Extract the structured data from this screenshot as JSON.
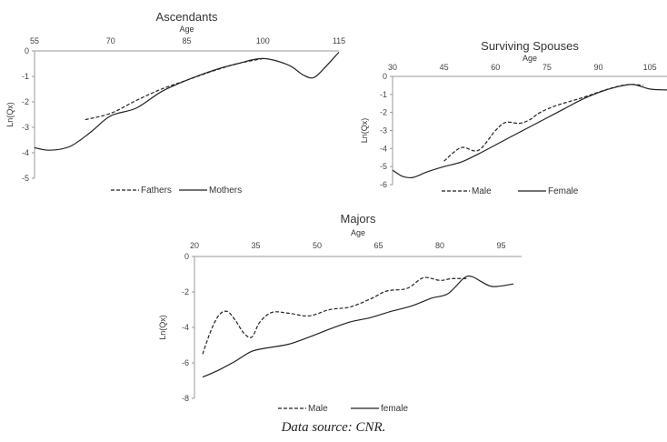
{
  "caption": "Data source: CNR.",
  "chart_data": [
    {
      "type": "line",
      "title": "Ascendants",
      "xlabel": "Age",
      "ylabel": "Ln(Qx)",
      "xlim": [
        55,
        115
      ],
      "ylim": [
        -5,
        0
      ],
      "x_ticks": [
        "55",
        "70",
        "85",
        "100",
        "115"
      ],
      "y_ticks": [
        "0",
        "-1",
        "-2",
        "-3",
        "-4",
        "-5"
      ],
      "x_axis_position": "top",
      "legend_position": "bottom",
      "series": [
        {
          "name": "Fathers",
          "style": "dashed",
          "x": [
            65,
            70,
            75,
            80,
            85,
            90,
            95,
            100
          ],
          "y": [
            -2.7,
            -2.45,
            -1.95,
            -1.5,
            -1.15,
            -0.8,
            -0.5,
            -0.3
          ]
        },
        {
          "name": "Mothers",
          "style": "solid",
          "x": [
            55,
            58,
            62,
            66,
            70,
            75,
            80,
            85,
            90,
            95,
            100,
            105,
            108,
            110,
            112,
            115
          ],
          "y": [
            -3.8,
            -3.9,
            -3.75,
            -3.2,
            -2.55,
            -2.25,
            -1.6,
            -1.15,
            -0.78,
            -0.5,
            -0.3,
            -0.55,
            -0.95,
            -1.05,
            -0.7,
            -0.05
          ]
        }
      ]
    },
    {
      "type": "line",
      "title": "Surviving Spouses",
      "xlabel": "Age",
      "ylabel": "Ln(Qx)",
      "xlim": [
        30,
        110
      ],
      "ylim": [
        -6,
        0
      ],
      "x_ticks": [
        "30",
        "45",
        "60",
        "75",
        "90",
        "105"
      ],
      "y_ticks": [
        "0",
        "-1",
        "-2",
        "-3",
        "-4",
        "-5",
        "-6"
      ],
      "x_axis_position": "top",
      "legend_position": "bottom",
      "series": [
        {
          "name": "Male",
          "style": "dashed",
          "x": [
            45,
            50,
            55,
            60,
            63,
            67,
            70,
            73,
            78,
            85,
            92,
            97,
            100,
            103
          ],
          "y": [
            -4.7,
            -3.95,
            -4.1,
            -3.0,
            -2.55,
            -2.6,
            -2.4,
            -2.0,
            -1.6,
            -1.2,
            -0.75,
            -0.5,
            -0.45,
            -0.5
          ]
        },
        {
          "name": "Female",
          "style": "solid",
          "x": [
            30,
            33,
            36,
            40,
            45,
            50,
            55,
            60,
            65,
            70,
            75,
            80,
            85,
            90,
            95,
            100,
            105,
            110
          ],
          "y": [
            -5.2,
            -5.55,
            -5.6,
            -5.3,
            -5.0,
            -4.75,
            -4.3,
            -3.8,
            -3.3,
            -2.8,
            -2.3,
            -1.8,
            -1.3,
            -0.9,
            -0.6,
            -0.45,
            -0.7,
            -0.75
          ]
        }
      ]
    },
    {
      "type": "line",
      "title": "Majors",
      "xlabel": "Age",
      "ylabel": "Ln(Qx)",
      "xlim": [
        20,
        100
      ],
      "ylim": [
        -8,
        0
      ],
      "x_ticks": [
        "20",
        "35",
        "50",
        "65",
        "80",
        "95"
      ],
      "y_ticks": [
        "0",
        "-2",
        "-4",
        "-6",
        "-8"
      ],
      "x_axis_position": "top",
      "legend_position": "bottom",
      "series": [
        {
          "name": "Male",
          "style": "dashed",
          "x": [
            22,
            24,
            26,
            28,
            30,
            32,
            34,
            36,
            39,
            43,
            48,
            53,
            58,
            63,
            67,
            72,
            76,
            80,
            83,
            87
          ],
          "y": [
            -5.5,
            -4.2,
            -3.3,
            -3.1,
            -3.6,
            -4.3,
            -4.55,
            -3.7,
            -3.15,
            -3.2,
            -3.35,
            -3.0,
            -2.85,
            -2.4,
            -1.95,
            -1.8,
            -1.2,
            -1.35,
            -1.25,
            -1.25
          ]
        },
        {
          "name": "female",
          "style": "solid",
          "x": [
            22,
            26,
            30,
            34,
            38,
            43,
            48,
            53,
            58,
            63,
            68,
            73,
            78,
            82,
            86,
            88,
            90,
            93,
            98
          ],
          "y": [
            -6.8,
            -6.4,
            -5.9,
            -5.35,
            -5.15,
            -4.95,
            -4.55,
            -4.1,
            -3.7,
            -3.45,
            -3.1,
            -2.8,
            -2.35,
            -2.1,
            -1.2,
            -1.15,
            -1.4,
            -1.7,
            -1.55
          ]
        }
      ]
    }
  ]
}
